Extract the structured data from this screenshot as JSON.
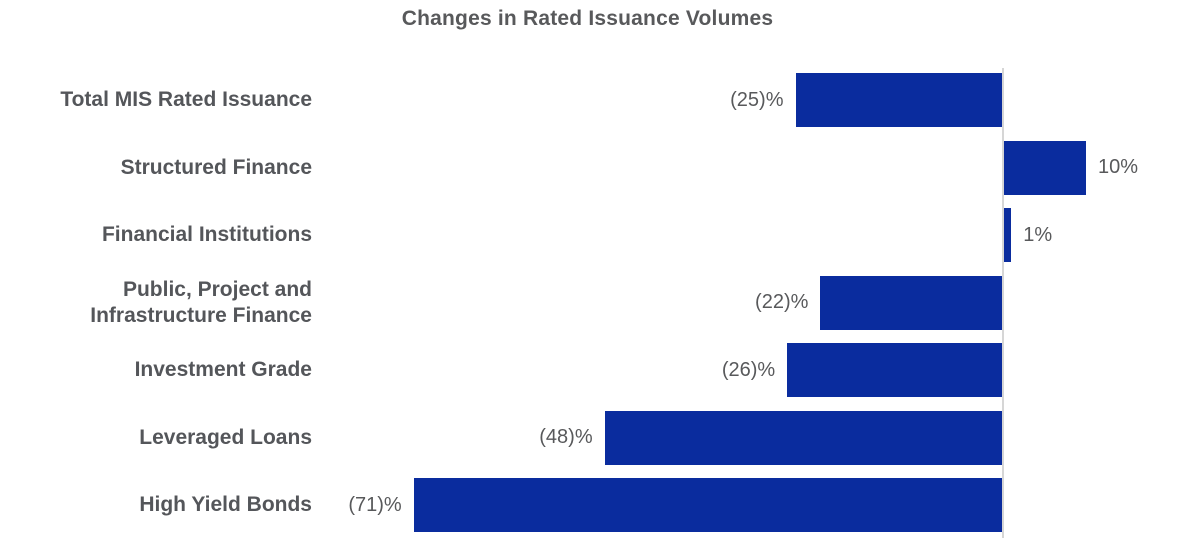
{
  "title": "Changes in Rated Issuance Volumes",
  "chart_data": {
    "type": "bar",
    "orientation": "horizontal",
    "title": "Changes in Rated Issuance Volumes",
    "categories": [
      "Total MIS Rated Issuance",
      "Structured Finance",
      "Financial Institutions",
      "Public, Project and\nInfrastructure Finance",
      "Investment Grade",
      "Leveraged Loans",
      "High Yield Bonds"
    ],
    "values": [
      -25,
      10,
      1,
      -22,
      -26,
      -48,
      -71
    ],
    "value_labels": [
      "(25)%",
      "10%",
      "1%",
      "(22)%",
      "(26)%",
      "(48)%",
      "(71)%"
    ],
    "unit": "%",
    "xlim": [
      -85,
      25
    ],
    "grid": false,
    "legend": false,
    "bar_color": "#0a2c9e",
    "axis_line_color": "#d6d6d6",
    "category_label_color": "#54565a",
    "value_label_color": "#58595b",
    "title_color": "#58595b",
    "background_color": "#ffffff"
  }
}
